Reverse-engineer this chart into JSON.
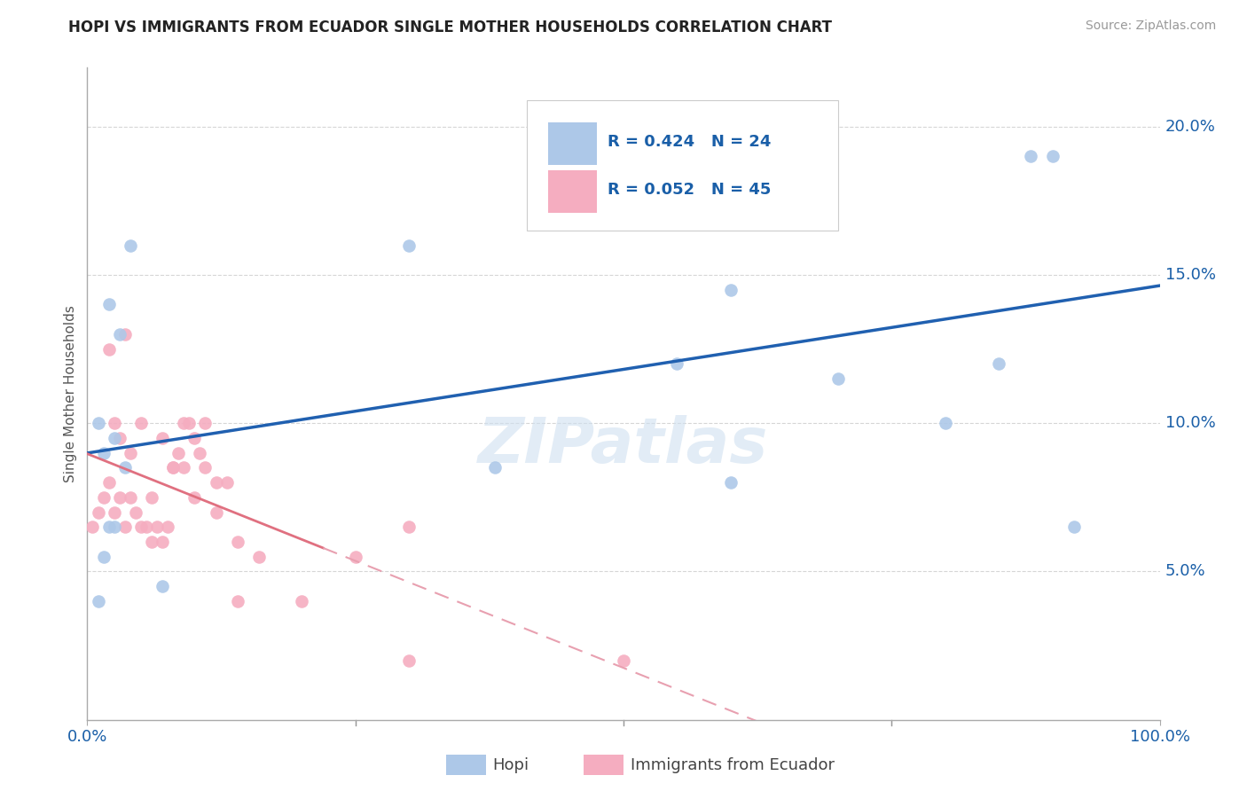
{
  "title": "HOPI VS IMMIGRANTS FROM ECUADOR SINGLE MOTHER HOUSEHOLDS CORRELATION CHART",
  "source": "Source: ZipAtlas.com",
  "ylabel": "Single Mother Households",
  "hopi_R": 0.424,
  "hopi_N": 24,
  "ecuador_R": 0.052,
  "ecuador_N": 45,
  "hopi_color": "#adc8e8",
  "ecuador_color": "#f5adc0",
  "hopi_line_color": "#2060b0",
  "ecuador_line_color": "#e07080",
  "ecuador_dashed_color": "#e8a0b0",
  "legend_color": "#1a5fa8",
  "watermark_color": "#cfe0f0",
  "xlim": [
    0.0,
    1.0
  ],
  "ylim": [
    0.0,
    0.22
  ],
  "xtick_positions": [
    0.0,
    0.25,
    0.5,
    0.75,
    1.0
  ],
  "xtick_labels": [
    "0.0%",
    "",
    "",
    "",
    "100.0%"
  ],
  "ytick_positions": [
    0.05,
    0.1,
    0.15,
    0.2
  ],
  "ytick_labels": [
    "5.0%",
    "10.0%",
    "15.0%",
    "20.0%"
  ],
  "background_color": "#ffffff",
  "grid_color": "#cccccc",
  "hopi_x": [
    0.01,
    0.02,
    0.03,
    0.04,
    0.015,
    0.025,
    0.035,
    0.02,
    0.025,
    0.015,
    0.01,
    0.3,
    0.38,
    0.55,
    0.6,
    0.65,
    0.7,
    0.8,
    0.85,
    0.88,
    0.9,
    0.92,
    0.6,
    0.07
  ],
  "hopi_y": [
    0.1,
    0.14,
    0.13,
    0.16,
    0.09,
    0.095,
    0.085,
    0.065,
    0.065,
    0.055,
    0.04,
    0.16,
    0.085,
    0.12,
    0.145,
    0.195,
    0.115,
    0.1,
    0.12,
    0.19,
    0.19,
    0.065,
    0.08,
    0.045
  ],
  "ecuador_x": [
    0.005,
    0.01,
    0.015,
    0.02,
    0.025,
    0.03,
    0.035,
    0.04,
    0.045,
    0.05,
    0.055,
    0.06,
    0.065,
    0.07,
    0.075,
    0.08,
    0.085,
    0.09,
    0.095,
    0.1,
    0.105,
    0.11,
    0.02,
    0.025,
    0.03,
    0.035,
    0.04,
    0.05,
    0.06,
    0.07,
    0.08,
    0.09,
    0.1,
    0.11,
    0.12,
    0.13,
    0.14,
    0.16,
    0.2,
    0.25,
    0.3,
    0.12,
    0.14,
    0.3,
    0.5
  ],
  "ecuador_y": [
    0.065,
    0.07,
    0.075,
    0.08,
    0.07,
    0.075,
    0.065,
    0.075,
    0.07,
    0.065,
    0.065,
    0.06,
    0.065,
    0.06,
    0.065,
    0.085,
    0.09,
    0.085,
    0.1,
    0.095,
    0.09,
    0.085,
    0.125,
    0.1,
    0.095,
    0.13,
    0.09,
    0.1,
    0.075,
    0.095,
    0.085,
    0.1,
    0.075,
    0.1,
    0.08,
    0.08,
    0.06,
    0.055,
    0.04,
    0.055,
    0.065,
    0.07,
    0.04,
    0.02,
    0.02
  ]
}
